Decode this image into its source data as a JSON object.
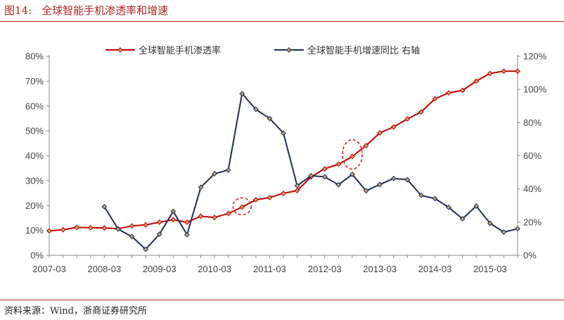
{
  "figure": {
    "number": "图14:",
    "title": "全球智能手机渗透率和增速",
    "source": "资料来源：Wind，浙商证券研究所"
  },
  "colors": {
    "red": "#c00000",
    "navy": "#1f2d5a",
    "marker_fill": "#c8a36a",
    "frame": "#b22222"
  },
  "chart_data": {
    "type": "line",
    "x": [
      "2007-03",
      "2007-06",
      "2007-09",
      "2007-12",
      "2008-03",
      "2008-06",
      "2008-09",
      "2008-12",
      "2009-03",
      "2009-06",
      "2009-09",
      "2009-12",
      "2010-03",
      "2010-06",
      "2010-09",
      "2010-12",
      "2011-03",
      "2011-06",
      "2011-09",
      "2011-12",
      "2012-03",
      "2012-06",
      "2012-09",
      "2012-12",
      "2013-03",
      "2013-06",
      "2013-09",
      "2013-12",
      "2014-03",
      "2014-06",
      "2014-09",
      "2014-12",
      "2015-03",
      "2015-06",
      "2015-09"
    ],
    "xticks": [
      "2007-03",
      "2008-03",
      "2009-03",
      "2010-03",
      "2011-03",
      "2012-03",
      "2013-03",
      "2014-03",
      "2015-03"
    ],
    "y_left": {
      "lim": [
        0,
        80
      ],
      "ticks": [
        "0%",
        "10%",
        "20%",
        "30%",
        "40%",
        "50%",
        "60%",
        "70%",
        "80%"
      ]
    },
    "y_right": {
      "lim": [
        0,
        120
      ],
      "ticks": [
        "0%",
        "20%",
        "40%",
        "60%",
        "80%",
        "100%",
        "120%"
      ]
    },
    "series": [
      {
        "name": "全球智能手机渗透率",
        "axis": "left",
        "color": "#c00000",
        "values": [
          9.8,
          10.3,
          11.2,
          11.1,
          11.0,
          10.7,
          11.8,
          12.2,
          13.3,
          14.3,
          13.3,
          15.7,
          15.2,
          16.8,
          19.4,
          22.3,
          23.2,
          24.9,
          26.0,
          31.5,
          34.8,
          36.6,
          39.7,
          44.1,
          49.2,
          51.6,
          54.8,
          57.6,
          62.9,
          65.3,
          66.3,
          70.0,
          73.1,
          74.0,
          74.0
        ]
      },
      {
        "name": "全球智能手机增速同比 右轴",
        "axis": "right",
        "color": "#1f2d5a",
        "values": [
          null,
          null,
          null,
          null,
          29.3,
          15.8,
          11.3,
          3.6,
          12.7,
          26.5,
          12.4,
          41.0,
          49.2,
          51.4,
          97.5,
          88.0,
          82.5,
          73.7,
          41.9,
          48.0,
          47.3,
          42.5,
          48.8,
          38.9,
          42.7,
          46.3,
          45.6,
          36.1,
          34.2,
          28.9,
          22.0,
          29.7,
          19.3,
          14.0,
          16.0
        ]
      }
    ],
    "legend_position": "top",
    "annotations": [
      {
        "type": "dashed-ellipse",
        "x": "2010-09",
        "axis": "left",
        "y": 19.4
      },
      {
        "type": "dashed-ellipse",
        "x": "2012-09",
        "axis": "left",
        "y": 39.7
      }
    ]
  }
}
